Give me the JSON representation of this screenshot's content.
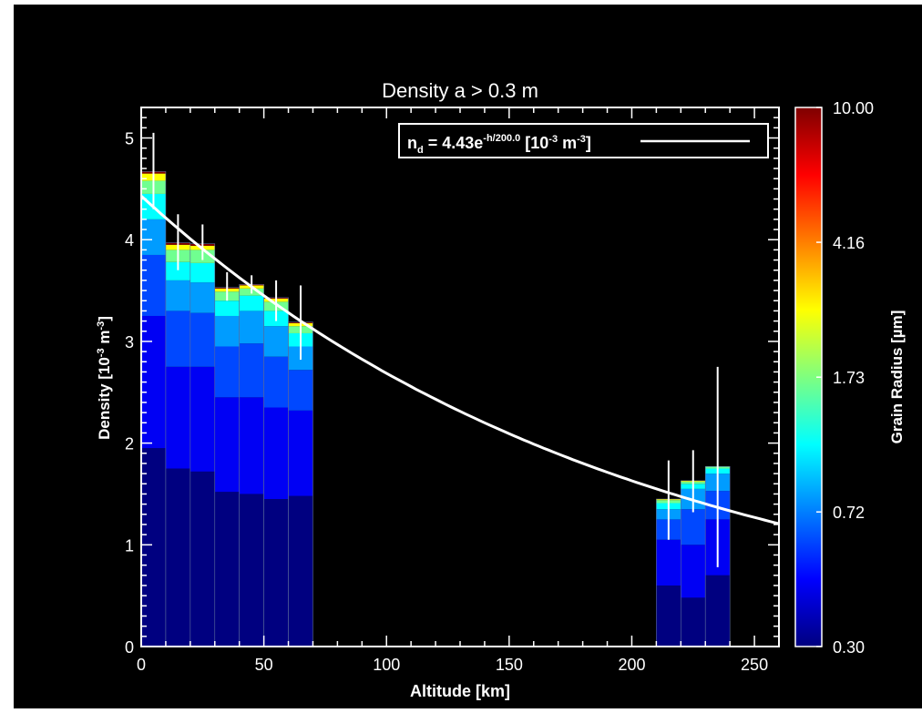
{
  "chart_data": {
    "type": "bar",
    "title": "Density a > 0.3   m",
    "xlabel": "Altitude [km]",
    "ylabel": "Density [10",
    "ylabel_exp": "-3",
    "ylabel_unit": " m",
    "ylabel_unit_exp": "-3",
    "ylabel_close": "]",
    "xlim": [
      0,
      260
    ],
    "ylim": [
      0,
      5.3
    ],
    "xticks": [
      0,
      50,
      100,
      150,
      200,
      250
    ],
    "yticks": [
      0,
      1,
      2,
      3,
      4,
      5
    ],
    "background": "#000000",
    "legend": {
      "placement": "top-right",
      "prefix": "n",
      "sub": "d",
      "mid": " = 4.43e",
      "sup": "-h/200.0",
      "mid2": " [10",
      "sup2": "-3",
      "mid3": " m",
      "sup3": "-3",
      "suffix": "]"
    },
    "fit": {
      "amplitude": 4.43,
      "scale_height_km": 200.0,
      "color": "#ffffff"
    },
    "grain_levels": [
      0.3,
      0.44,
      0.72,
      1.15,
      1.73,
      2.5,
      4.16,
      10.0
    ],
    "bars": [
      {
        "x0": 0,
        "x1": 10,
        "total": 4.67,
        "stack": [
          1.95,
          3.25,
          3.85,
          4.2,
          4.45,
          4.58,
          4.65,
          4.67
        ],
        "err": [
          4.3,
          5.05
        ]
      },
      {
        "x0": 10,
        "x1": 20,
        "total": 3.97,
        "stack": [
          1.75,
          2.75,
          3.3,
          3.6,
          3.78,
          3.9,
          3.95,
          3.97
        ],
        "err": [
          3.7,
          4.25
        ]
      },
      {
        "x0": 20,
        "x1": 30,
        "total": 3.96,
        "stack": [
          1.72,
          2.75,
          3.28,
          3.58,
          3.77,
          3.9,
          3.94,
          3.96
        ],
        "err": [
          3.8,
          4.15
        ]
      },
      {
        "x0": 30,
        "x1": 40,
        "total": 3.53,
        "stack": [
          1.52,
          2.45,
          2.95,
          3.25,
          3.4,
          3.49,
          3.52,
          3.53
        ],
        "err": [
          3.4,
          3.68
        ]
      },
      {
        "x0": 40,
        "x1": 50,
        "total": 3.56,
        "stack": [
          1.5,
          2.45,
          2.98,
          3.3,
          3.45,
          3.52,
          3.55,
          3.56
        ],
        "err": [
          3.47,
          3.65
        ]
      },
      {
        "x0": 50,
        "x1": 60,
        "total": 3.43,
        "stack": [
          1.45,
          2.35,
          2.85,
          3.15,
          3.3,
          3.39,
          3.42,
          3.43
        ],
        "err": [
          3.2,
          3.6
        ]
      },
      {
        "x0": 60,
        "x1": 70,
        "total": 3.19,
        "stack": [
          1.48,
          2.32,
          2.72,
          2.95,
          3.08,
          3.15,
          3.18,
          3.19
        ],
        "err": [
          2.82,
          3.55
        ]
      },
      {
        "x0": 210,
        "x1": 220,
        "total": 1.45,
        "stack": [
          0.6,
          1.05,
          1.25,
          1.35,
          1.41,
          1.44,
          1.45,
          1.45
        ],
        "err": [
          1.05,
          1.83
        ]
      },
      {
        "x0": 220,
        "x1": 230,
        "total": 1.63,
        "stack": [
          0.48,
          1.0,
          1.35,
          1.55,
          1.6,
          1.62,
          1.63,
          1.63
        ],
        "err": [
          1.32,
          1.93
        ]
      },
      {
        "x0": 230,
        "x1": 240,
        "total": 1.77,
        "stack": [
          0.7,
          1.25,
          1.53,
          1.7,
          1.75,
          1.77,
          1.77,
          1.77
        ],
        "err": [
          0.78,
          2.75
        ]
      }
    ],
    "colorbar": {
      "label": "Grain Radius [µm]",
      "ticks": [
        "10.00",
        "4.16",
        "1.73",
        "0.72",
        "0.30"
      ],
      "colors": [
        "#00007f",
        "#0000ff",
        "#007fff",
        "#00ffff",
        "#7fff7f",
        "#ffff00",
        "#ff7f00",
        "#ff0000",
        "#7f0000"
      ]
    }
  }
}
